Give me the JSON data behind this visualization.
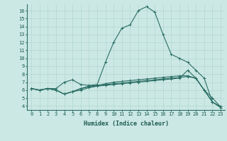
{
  "title": "",
  "xlabel": "Humidex (Indice chaleur)",
  "bg_color": "#cce8e4",
  "line_color": "#2a6e65",
  "grid_color": "#aad4cc",
  "xlim": [
    -0.5,
    23.5
  ],
  "ylim": [
    3.5,
    16.8
  ],
  "yticks": [
    4,
    5,
    6,
    7,
    8,
    9,
    10,
    11,
    12,
    13,
    14,
    15,
    16
  ],
  "xticks": [
    0,
    1,
    2,
    3,
    4,
    5,
    6,
    7,
    8,
    9,
    10,
    11,
    12,
    13,
    14,
    15,
    16,
    17,
    18,
    19,
    20,
    21,
    22,
    23
  ],
  "lines": [
    {
      "x": [
        0,
        1,
        2,
        3,
        4,
        5,
        6,
        7,
        8,
        9,
        10,
        11,
        12,
        13,
        14,
        15,
        16,
        17,
        18,
        19,
        20,
        21,
        22,
        23
      ],
      "y": [
        6.2,
        6.0,
        6.2,
        6.2,
        7.0,
        7.3,
        6.7,
        6.6,
        6.7,
        9.5,
        12.0,
        13.8,
        14.2,
        16.0,
        16.5,
        15.8,
        13.0,
        10.5,
        10.0,
        9.5,
        8.5,
        7.5,
        4.5,
        3.8
      ]
    },
    {
      "x": [
        0,
        1,
        2,
        3,
        4,
        5,
        6,
        7,
        8,
        9,
        10,
        11,
        12,
        13,
        14,
        15,
        16,
        17,
        18,
        19,
        20,
        21,
        22,
        23
      ],
      "y": [
        6.2,
        6.0,
        6.2,
        6.0,
        5.5,
        5.8,
        6.2,
        6.5,
        6.6,
        6.8,
        7.0,
        7.1,
        7.2,
        7.3,
        7.4,
        7.5,
        7.6,
        7.7,
        7.8,
        7.8,
        7.5,
        6.0,
        5.0,
        3.9
      ]
    },
    {
      "x": [
        0,
        1,
        2,
        3,
        4,
        5,
        6,
        7,
        8,
        9,
        10,
        11,
        12,
        13,
        14,
        15,
        16,
        17,
        18,
        19,
        20,
        21,
        22,
        23
      ],
      "y": [
        6.2,
        6.0,
        6.2,
        6.0,
        5.5,
        5.8,
        6.2,
        6.4,
        6.5,
        6.6,
        6.7,
        6.8,
        6.9,
        7.0,
        7.1,
        7.2,
        7.3,
        7.4,
        7.5,
        8.5,
        7.5,
        6.0,
        4.5,
        3.9
      ]
    },
    {
      "x": [
        0,
        1,
        2,
        3,
        4,
        5,
        6,
        7,
        8,
        9,
        10,
        11,
        12,
        13,
        14,
        15,
        16,
        17,
        18,
        19,
        20,
        21,
        22,
        23
      ],
      "y": [
        6.2,
        6.0,
        6.2,
        6.0,
        5.5,
        5.8,
        6.0,
        6.3,
        6.5,
        6.7,
        6.8,
        6.9,
        7.0,
        7.1,
        7.2,
        7.3,
        7.4,
        7.5,
        7.6,
        7.7,
        7.5,
        6.0,
        4.5,
        3.9
      ]
    }
  ],
  "tick_fontsize": 5.0,
  "xlabel_fontsize": 6.0,
  "tick_color": "#1a5a50",
  "spine_color": "#2a6e65",
  "linewidth": 0.8,
  "markersize": 3.5
}
